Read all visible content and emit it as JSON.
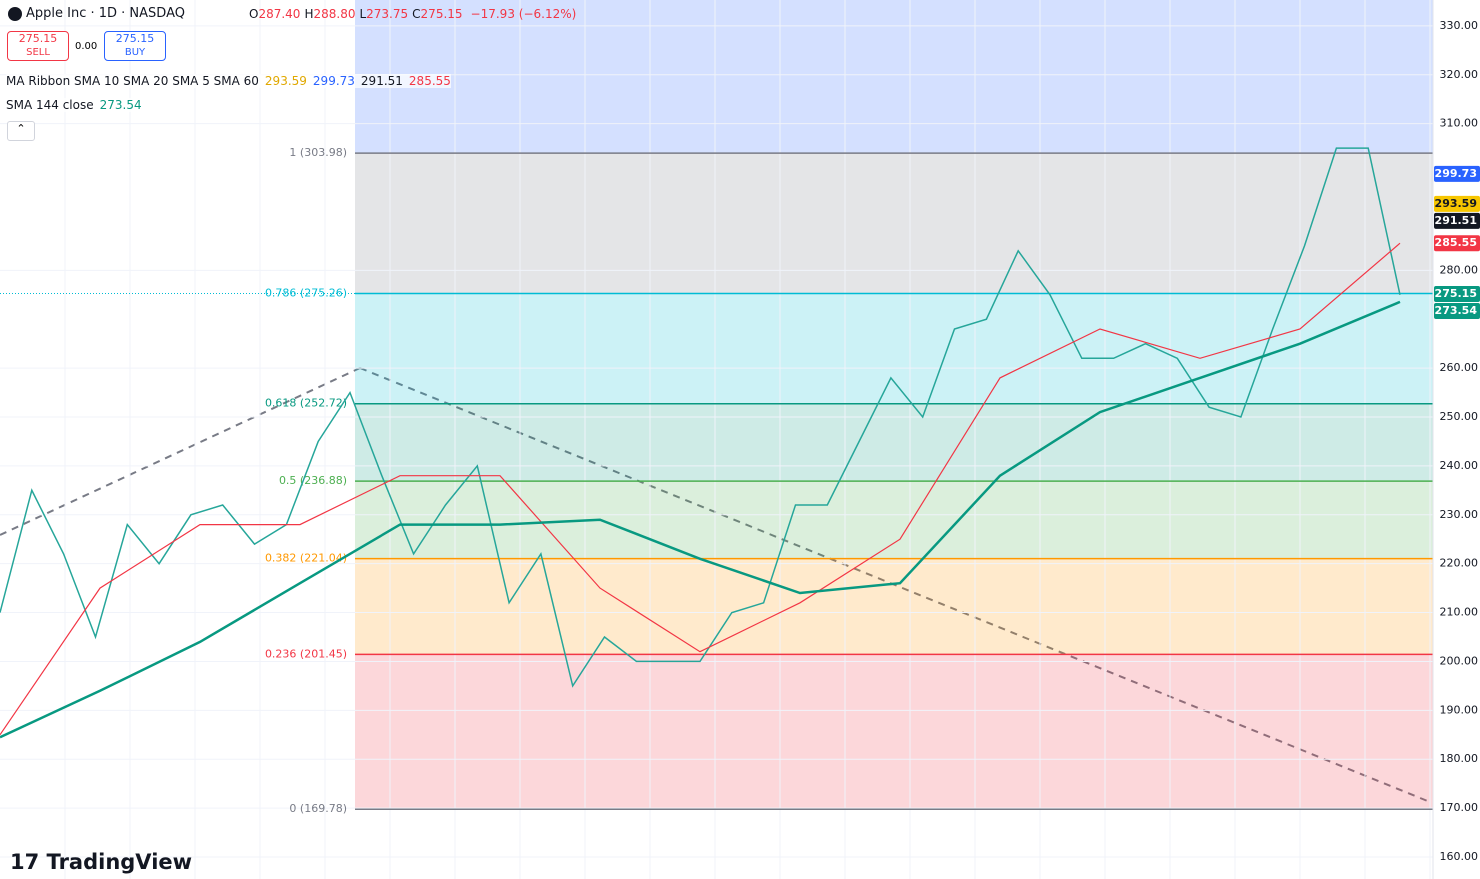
{
  "header": {
    "symbol": "Apple Inc · 1D · NASDAQ",
    "ohlc": [
      {
        "label": "O",
        "value": "287.40"
      },
      {
        "label": "H",
        "value": "288.80"
      },
      {
        "label": "L",
        "value": "273.75"
      },
      {
        "label": "C",
        "value": "275.15"
      }
    ],
    "change": "−17.93 (−6.12%)"
  },
  "trade": {
    "sell_price": "275.15",
    "sell": "SELL",
    "spread": "0.00",
    "buy_price": "275.15",
    "buy": "BUY"
  },
  "indicators": [
    {
      "name": "MA Ribbon SMA 10 SMA 20 SMA 5 SMA 60",
      "values": [
        {
          "text": "293.59",
          "color": "#e0a800"
        },
        {
          "text": "299.73",
          "color": "#2962ff"
        },
        {
          "text": "291.51",
          "color": "#131722"
        },
        {
          "text": "285.55",
          "color": "#f23645"
        }
      ]
    },
    {
      "name": "SMA 144 close",
      "values": [
        {
          "text": "273.54",
          "color": "#089981"
        }
      ]
    }
  ],
  "chart_data": {
    "type": "line",
    "ylim": [
      155.5,
      335.3
    ],
    "yticks": [
      {
        "value": 330,
        "label": "330.00"
      },
      {
        "value": 320,
        "label": "320.00"
      },
      {
        "value": 310,
        "label": "310.00"
      },
      {
        "value": 280,
        "label": "280.00"
      },
      {
        "value": 260,
        "label": "260.00"
      },
      {
        "value": 250,
        "label": "250.00"
      },
      {
        "value": 240,
        "label": "240.00"
      },
      {
        "value": 230,
        "label": "230.00"
      },
      {
        "value": 220,
        "label": "220.00"
      },
      {
        "value": 210,
        "label": "210.00"
      },
      {
        "value": 200,
        "label": "200.00"
      },
      {
        "value": 190,
        "label": "190.00"
      },
      {
        "value": 180,
        "label": "180.00"
      },
      {
        "value": 170,
        "label": "170.00"
      },
      {
        "value": 160,
        "label": "160.00"
      }
    ],
    "top_zone_color": "#2962ff",
    "fib_levels": [
      {
        "value": 303.98,
        "label": "1 (303.98)",
        "color": "#787b86"
      },
      {
        "value": 275.26,
        "label": "0.786 (275.26)",
        "color": "#00bcd4"
      },
      {
        "value": 252.72,
        "label": "0.618 (252.72)",
        "color": "#089981"
      },
      {
        "value": 236.88,
        "label": "0.5 (236.88)",
        "color": "#4caf50"
      },
      {
        "value": 221.04,
        "label": "0.382 (221.04)",
        "color": "#ff9800"
      },
      {
        "value": 201.45,
        "label": "0.236 (201.45)",
        "color": "#f23645"
      },
      {
        "value": 169.78,
        "label": "0 (169.78)",
        "color": "#787b86"
      }
    ],
    "lines": [
      {
        "color": "#26a69a",
        "width": 1.5,
        "values": [
          210,
          235,
          222,
          205,
          228,
          220,
          230,
          232,
          224,
          228,
          245,
          255,
          238,
          222,
          232,
          240,
          212,
          222,
          195,
          205,
          200,
          200,
          200,
          210,
          212,
          232,
          232,
          245,
          258,
          250,
          268,
          270,
          284,
          275,
          262,
          262,
          265,
          262,
          252,
          250,
          268,
          285,
          305,
          305,
          275
        ]
      },
      {
        "color": "#f23645",
        "width": 1.2,
        "values": [
          185,
          215,
          228,
          228,
          238,
          238,
          215,
          202,
          212,
          225,
          258,
          268,
          262,
          268,
          285.55
        ]
      },
      {
        "color": "#089981",
        "width": 2.5,
        "values": [
          184.5,
          194,
          204,
          216,
          228,
          228,
          229,
          221,
          214,
          216,
          238,
          251,
          258,
          265,
          273.54
        ]
      }
    ],
    "price_tags": [
      {
        "value": 299.73,
        "color": "#2962ff",
        "text_color": "#ffffff"
      },
      {
        "value": 293.59,
        "color": "#f7c600",
        "text_color": "#131722"
      },
      {
        "value": 291.51,
        "color": "#131722",
        "text_color": "#ffffff"
      },
      {
        "value": 285.55,
        "color": "#f23645",
        "text_color": "#ffffff"
      },
      {
        "value": 275.15,
        "color": "#089981",
        "text_color": "#ffffff"
      },
      {
        "value": 273.54,
        "color": "#089981",
        "text_color": "#ffffff"
      }
    ]
  },
  "logo": "TradingView"
}
